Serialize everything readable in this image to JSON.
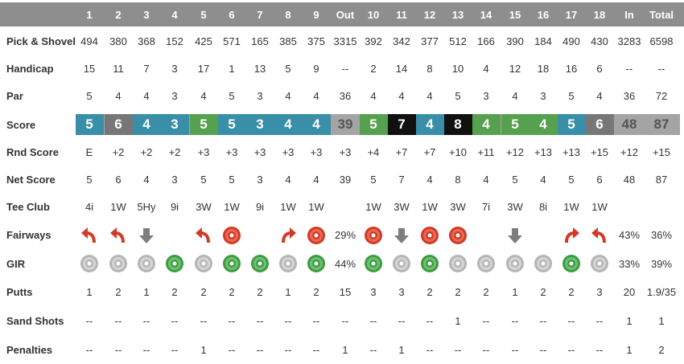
{
  "columns": [
    "1",
    "2",
    "3",
    "4",
    "5",
    "6",
    "7",
    "8",
    "9",
    "Out",
    "10",
    "11",
    "12",
    "13",
    "14",
    "15",
    "16",
    "17",
    "18",
    "In",
    "Total"
  ],
  "rows": [
    {
      "label": "Pick & Shovel",
      "values": [
        "494",
        "380",
        "368",
        "152",
        "425",
        "571",
        "165",
        "385",
        "375",
        "3315",
        "392",
        "342",
        "377",
        "512",
        "166",
        "390",
        "184",
        "490",
        "430",
        "3283",
        "6598"
      ]
    },
    {
      "label": "Handicap",
      "values": [
        "15",
        "11",
        "7",
        "3",
        "17",
        "1",
        "13",
        "5",
        "9",
        "--",
        "2",
        "14",
        "8",
        "10",
        "4",
        "12",
        "18",
        "16",
        "6",
        "--",
        "--"
      ]
    },
    {
      "label": "Par",
      "values": [
        "5",
        "4",
        "4",
        "3",
        "4",
        "5",
        "3",
        "4",
        "4",
        "36",
        "4",
        "4",
        "4",
        "5",
        "3",
        "4",
        "3",
        "5",
        "4",
        "36",
        "72"
      ]
    },
    {
      "label": "Score",
      "values": [
        "5",
        "6",
        "4",
        "3",
        "5",
        "5",
        "3",
        "4",
        "4",
        "39",
        "5",
        "7",
        "4",
        "8",
        "4",
        "5",
        "4",
        "5",
        "6",
        "48",
        "87"
      ]
    },
    {
      "label": "Rnd Score",
      "values": [
        "E",
        "+2",
        "+2",
        "+2",
        "+3",
        "+3",
        "+3",
        "+3",
        "+3",
        "+3",
        "+4",
        "+7",
        "+7",
        "+10",
        "+11",
        "+12",
        "+13",
        "+13",
        "+15",
        "+12",
        "+15"
      ]
    },
    {
      "label": "Net Score",
      "values": [
        "5",
        "6",
        "4",
        "3",
        "5",
        "5",
        "3",
        "4",
        "4",
        "39",
        "5",
        "7",
        "4",
        "8",
        "4",
        "5",
        "4",
        "5",
        "6",
        "48",
        "87"
      ]
    },
    {
      "label": "Tee Club",
      "values": [
        "4i",
        "1W",
        "5Hy",
        "9i",
        "3W",
        "1W",
        "9i",
        "1W",
        "1W",
        "",
        "1W",
        "3W",
        "1W",
        "3W",
        "7i",
        "3W",
        "8i",
        "1W",
        "1W",
        "",
        ""
      ]
    },
    {
      "label": "Fairways",
      "values": [
        "",
        "",
        "",
        "",
        "",
        "",
        "",
        "",
        "",
        "29%",
        "",
        "",
        "",
        "",
        "",
        "",
        "",
        "",
        "",
        "43%",
        "36%"
      ]
    },
    {
      "label": "GIR",
      "values": [
        "",
        "",
        "",
        "",
        "",
        "",
        "",
        "",
        "",
        "44%",
        "",
        "",
        "",
        "",
        "",
        "",
        "",
        "",
        "",
        "33%",
        "39%"
      ]
    },
    {
      "label": "Putts",
      "values": [
        "1",
        "2",
        "1",
        "2",
        "2",
        "2",
        "2",
        "1",
        "2",
        "15",
        "3",
        "3",
        "2",
        "2",
        "2",
        "1",
        "2",
        "2",
        "3",
        "20",
        "1.9/35"
      ]
    },
    {
      "label": "Sand Shots",
      "values": [
        "--",
        "--",
        "--",
        "--",
        "--",
        "--",
        "--",
        "--",
        "--",
        "--",
        "--",
        "--",
        "--",
        "1",
        "--",
        "--",
        "--",
        "--",
        "--",
        "1",
        "1"
      ]
    },
    {
      "label": "Penalties",
      "values": [
        "--",
        "--",
        "--",
        "--",
        "1",
        "--",
        "--",
        "--",
        "--",
        "1",
        "--",
        "1",
        "--",
        "--",
        "--",
        "--",
        "--",
        "--",
        "--",
        "1",
        "2"
      ]
    }
  ],
  "score_colors": [
    "blue",
    "gray",
    "blue",
    "blue",
    "green",
    "blue",
    "blue",
    "blue",
    "blue",
    "sum",
    "green",
    "black",
    "blue",
    "black",
    "green",
    "green",
    "green",
    "blue",
    "gray",
    "sum",
    "sum"
  ],
  "fairways": [
    "miss-left",
    "miss-left",
    "short",
    "",
    "miss-left",
    "miss",
    "",
    "miss-right",
    "miss",
    "",
    "miss",
    "short",
    "miss",
    "miss",
    "",
    "short",
    "",
    "miss-right",
    "miss-left",
    "",
    ""
  ],
  "gir": [
    "miss",
    "miss",
    "miss",
    "hit",
    "miss",
    "hit",
    "hit",
    "miss",
    "hit",
    "",
    "hit",
    "miss",
    "hit",
    "miss",
    "miss",
    "miss",
    "miss",
    "hit",
    "miss",
    "",
    ""
  ],
  "colors": {
    "header": "#8e8e8e",
    "blue": "#3a8fa8",
    "green": "#56a14f",
    "gray": "#777777",
    "black": "#111111",
    "sum": "#a4a4a4",
    "red": "#d33a26",
    "arrow_gray": "#7d7d7d",
    "gir_gray": "#b5b5b5",
    "gir_green": "#3f9a43"
  }
}
